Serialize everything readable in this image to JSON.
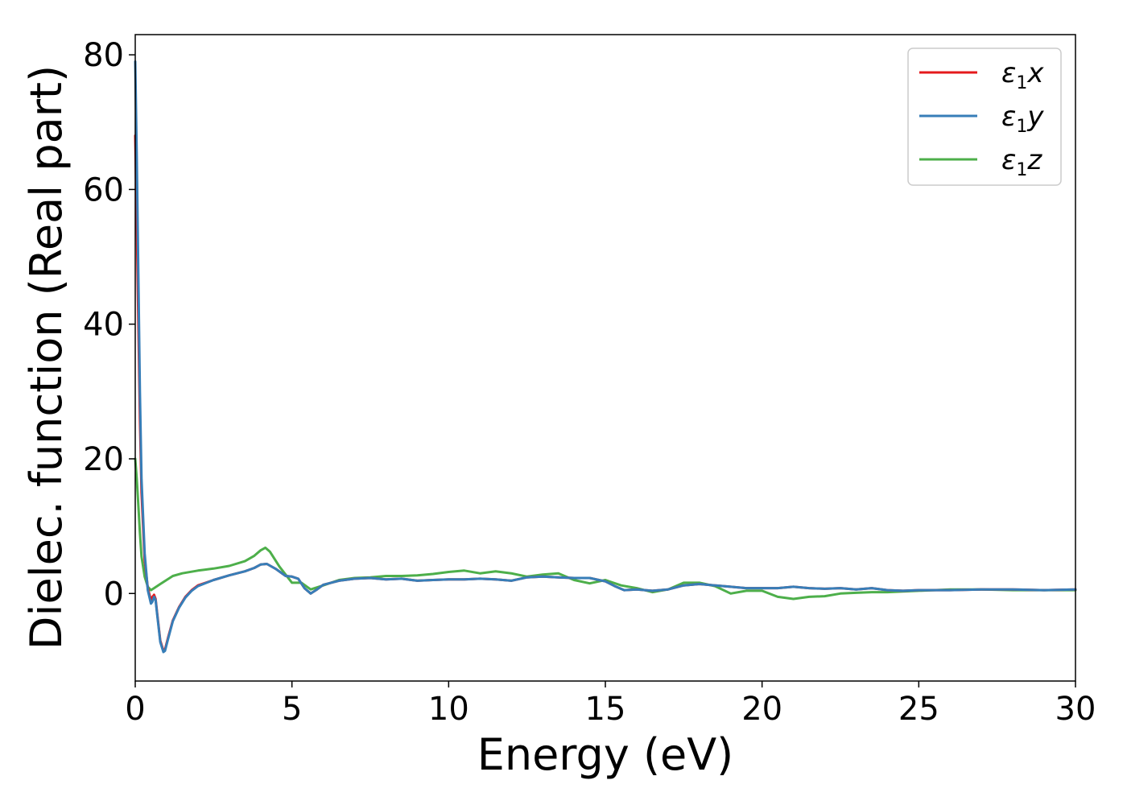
{
  "chart_data": {
    "type": "line",
    "xlabel": "Energy (eV)",
    "ylabel": "Dielec. function (Real part)",
    "xlim": [
      0,
      30
    ],
    "ylim": [
      -13,
      83
    ],
    "xticks": [
      0,
      5,
      10,
      15,
      20,
      25,
      30
    ],
    "yticks": [
      0,
      20,
      40,
      60,
      80
    ],
    "grid": false,
    "legend_position": "top-right",
    "series": [
      {
        "name": "ε1x",
        "legend_base": "ε",
        "legend_sub": "1",
        "legend_var": "x",
        "color": "#e41a1c",
        "x": [
          0.0,
          0.05,
          0.1,
          0.15,
          0.2,
          0.3,
          0.4,
          0.5,
          0.55,
          0.6,
          0.65,
          0.7,
          0.8,
          0.9,
          0.95,
          1.05,
          1.2,
          1.4,
          1.6,
          1.8,
          2.0,
          2.5,
          3.0,
          3.5,
          3.8,
          4.0,
          4.2,
          4.5,
          4.8,
          5.0,
          5.2,
          5.4,
          5.6,
          5.8,
          6.0,
          6.5,
          7.0,
          7.5,
          8.0,
          8.5,
          9.0,
          9.5,
          10.0,
          10.5,
          11.0,
          11.5,
          12.0,
          12.5,
          13.0,
          13.5,
          14.0,
          14.5,
          15.0,
          15.3,
          15.6,
          16.0,
          16.5,
          17.0,
          17.5,
          18.0,
          18.5,
          19.0,
          19.5,
          20.0,
          20.5,
          21.0,
          21.5,
          22.0,
          22.5,
          23.0,
          23.5,
          24.0,
          24.5,
          25.0,
          26.0,
          27.0,
          28.0,
          29.0,
          30.0
        ],
        "y": [
          68,
          55,
          40,
          26,
          15,
          5,
          0.8,
          -1.0,
          -0.5,
          -0.2,
          -0.8,
          -3.0,
          -7.0,
          -8.5,
          -8.3,
          -6.5,
          -4.0,
          -2.0,
          -0.5,
          0.5,
          1.2,
          2.0,
          2.7,
          3.3,
          3.8,
          4.3,
          4.4,
          3.6,
          2.6,
          2.5,
          2.2,
          0.8,
          0.0,
          0.6,
          1.3,
          1.9,
          2.2,
          2.3,
          2.1,
          2.2,
          1.9,
          2.0,
          2.1,
          2.1,
          2.2,
          2.1,
          1.9,
          2.4,
          2.5,
          2.4,
          2.3,
          2.3,
          1.8,
          1.1,
          0.5,
          0.6,
          0.4,
          0.6,
          1.2,
          1.4,
          1.2,
          1.0,
          0.8,
          0.8,
          0.8,
          1.0,
          0.8,
          0.7,
          0.8,
          0.6,
          0.8,
          0.5,
          0.4,
          0.5,
          0.5,
          0.6,
          0.6,
          0.5,
          0.6
        ]
      },
      {
        "name": "ε1y",
        "legend_base": "ε",
        "legend_sub": "1",
        "legend_var": "y",
        "color": "#377eb8",
        "x": [
          0.0,
          0.05,
          0.1,
          0.15,
          0.2,
          0.3,
          0.4,
          0.5,
          0.55,
          0.6,
          0.65,
          0.7,
          0.8,
          0.9,
          0.95,
          1.05,
          1.2,
          1.4,
          1.6,
          1.8,
          2.0,
          2.5,
          3.0,
          3.5,
          3.8,
          4.0,
          4.2,
          4.5,
          4.8,
          5.0,
          5.2,
          5.4,
          5.6,
          5.8,
          6.0,
          6.5,
          7.0,
          7.5,
          8.0,
          8.5,
          9.0,
          9.5,
          10.0,
          10.5,
          11.0,
          11.5,
          12.0,
          12.5,
          13.0,
          13.5,
          14.0,
          14.5,
          15.0,
          15.3,
          15.6,
          16.0,
          16.5,
          17.0,
          17.5,
          18.0,
          18.5,
          19.0,
          19.5,
          20.0,
          20.5,
          21.0,
          21.5,
          22.0,
          22.5,
          23.0,
          23.5,
          24.0,
          24.5,
          25.0,
          26.0,
          27.0,
          28.0,
          29.0,
          30.0
        ],
        "y": [
          79,
          65,
          47,
          30,
          17,
          6,
          0.5,
          -1.5,
          -1.2,
          -0.5,
          -1.0,
          -3.2,
          -7.2,
          -8.7,
          -8.5,
          -6.7,
          -4.1,
          -2.1,
          -0.6,
          0.4,
          1.1,
          2.0,
          2.7,
          3.3,
          3.8,
          4.3,
          4.4,
          3.6,
          2.6,
          2.5,
          2.2,
          0.8,
          0.0,
          0.6,
          1.3,
          1.9,
          2.2,
          2.3,
          2.1,
          2.2,
          1.9,
          2.0,
          2.1,
          2.1,
          2.2,
          2.1,
          1.9,
          2.4,
          2.5,
          2.4,
          2.3,
          2.3,
          1.8,
          1.1,
          0.5,
          0.6,
          0.4,
          0.6,
          1.2,
          1.4,
          1.2,
          1.0,
          0.8,
          0.8,
          0.8,
          1.0,
          0.8,
          0.7,
          0.8,
          0.6,
          0.8,
          0.5,
          0.4,
          0.5,
          0.5,
          0.6,
          0.6,
          0.5,
          0.6
        ]
      },
      {
        "name": "ε1z",
        "legend_base": "ε",
        "legend_sub": "1",
        "legend_var": "z",
        "color": "#4daf4a",
        "x": [
          0.0,
          0.05,
          0.1,
          0.15,
          0.2,
          0.3,
          0.4,
          0.5,
          0.6,
          0.8,
          1.0,
          1.2,
          1.5,
          2.0,
          2.5,
          3.0,
          3.5,
          3.8,
          4.0,
          4.15,
          4.3,
          4.6,
          5.0,
          5.3,
          5.6,
          6.0,
          6.5,
          7.0,
          7.5,
          8.0,
          8.5,
          9.0,
          9.5,
          10.0,
          10.5,
          11.0,
          11.5,
          12.0,
          12.5,
          13.0,
          13.5,
          14.0,
          14.5,
          15.0,
          15.5,
          16.0,
          16.5,
          17.0,
          17.5,
          18.0,
          18.5,
          19.0,
          19.5,
          20.0,
          20.5,
          21.0,
          21.5,
          22.0,
          22.5,
          23.0,
          23.5,
          24.0,
          25.0,
          26.0,
          27.0,
          28.0,
          29.0,
          30.0
        ],
        "y": [
          20,
          17,
          13,
          9,
          5.5,
          2.5,
          1.0,
          0.5,
          0.8,
          1.4,
          2.0,
          2.6,
          3.0,
          3.4,
          3.7,
          4.1,
          4.8,
          5.6,
          6.4,
          6.8,
          6.2,
          4.0,
          1.6,
          1.6,
          0.6,
          1.2,
          2.0,
          2.3,
          2.4,
          2.6,
          2.6,
          2.7,
          2.9,
          3.2,
          3.4,
          3.0,
          3.3,
          3.0,
          2.5,
          2.8,
          3.0,
          2.0,
          1.5,
          2.0,
          1.2,
          0.8,
          0.2,
          0.6,
          1.6,
          1.6,
          1.1,
          0.0,
          0.4,
          0.4,
          -0.5,
          -0.8,
          -0.5,
          -0.4,
          0.0,
          0.1,
          0.2,
          0.2,
          0.4,
          0.6,
          0.6,
          0.5,
          0.5,
          0.5
        ]
      }
    ]
  }
}
